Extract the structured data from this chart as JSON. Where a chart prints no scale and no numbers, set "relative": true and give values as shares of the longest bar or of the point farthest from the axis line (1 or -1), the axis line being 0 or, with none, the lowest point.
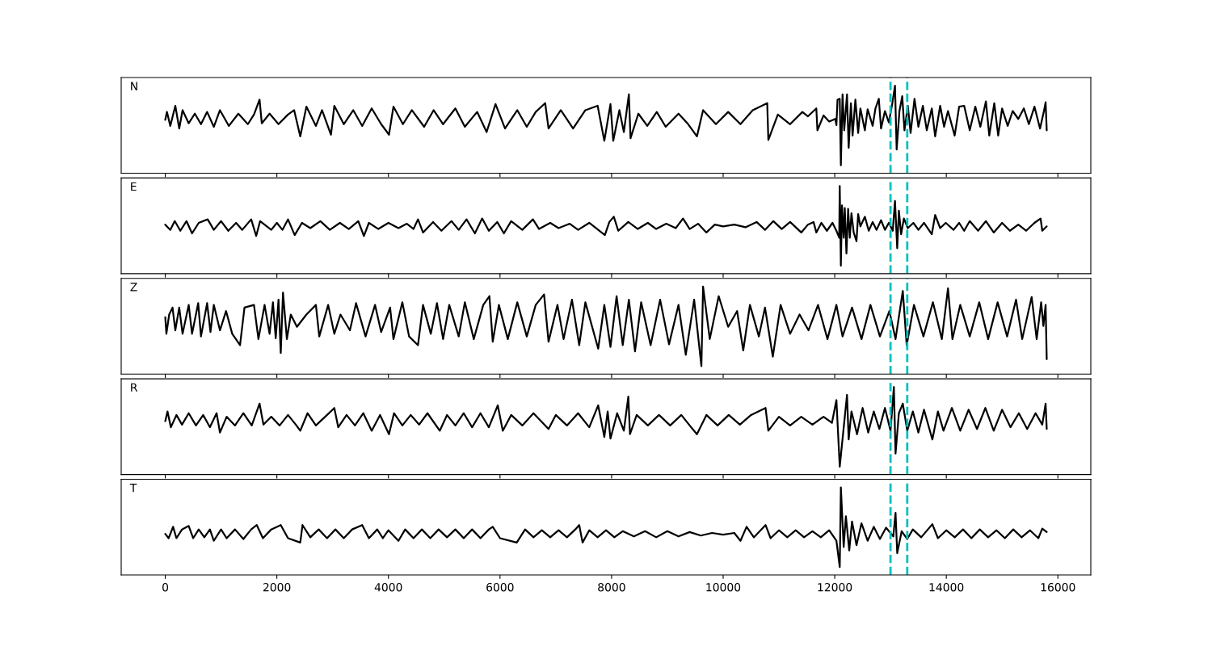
{
  "chart_data": [
    {
      "type": "line",
      "title": "N",
      "relative": true,
      "color": "#000000",
      "xlim": [
        -790,
        16590
      ],
      "xticks": [
        0,
        2000,
        4000,
        6000,
        8000,
        10000,
        12000,
        14000,
        16000
      ],
      "tick_labels": false,
      "ref_lines": [
        {
          "axis": "x",
          "value": 13000,
          "color": "#00bfbf",
          "line_style": "dashed"
        },
        {
          "axis": "x",
          "value": 13300,
          "color": "#00bfbf",
          "line_style": "dashed"
        }
      ],
      "x": [
        0,
        30,
        90,
        180,
        250,
        310,
        420,
        530,
        640,
        750,
        870,
        980,
        1140,
        1310,
        1480,
        1590,
        1690,
        1730,
        1870,
        2030,
        2200,
        2310,
        2420,
        2530,
        2700,
        2810,
        2970,
        3030,
        3200,
        3370,
        3530,
        3700,
        3870,
        4010,
        4090,
        4260,
        4420,
        4640,
        4810,
        4980,
        5200,
        5370,
        5590,
        5760,
        5920,
        6090,
        6310,
        6480,
        6640,
        6810,
        6870,
        7090,
        7310,
        7530,
        7750,
        7870,
        7980,
        8030,
        8140,
        8220,
        8310,
        8340,
        8480,
        8640,
        8810,
        8970,
        9200,
        9360,
        9530,
        9640,
        9870,
        10090,
        10310,
        10530,
        10790,
        10810,
        10980,
        11200,
        11420,
        11520,
        11670,
        11690,
        11800,
        11900,
        12010,
        12030,
        12050,
        12090,
        12110,
        12140,
        12170,
        12220,
        12250,
        12290,
        12320,
        12370,
        12420,
        12460,
        12540,
        12590,
        12680,
        12730,
        12790,
        12830,
        12900,
        12970,
        13030,
        13080,
        13110,
        13160,
        13210,
        13250,
        13310,
        13360,
        13430,
        13500,
        13580,
        13650,
        13740,
        13800,
        13890,
        13960,
        14030,
        14150,
        14230,
        14320,
        14420,
        14520,
        14610,
        14710,
        14770,
        14860,
        14930,
        15000,
        15100,
        15190,
        15290,
        15390,
        15480,
        15580,
        15680,
        15750,
        15780,
        15800
      ],
      "values": [
        0.61,
        0.7,
        0.54,
        0.77,
        0.51,
        0.72,
        0.57,
        0.68,
        0.56,
        0.7,
        0.53,
        0.72,
        0.54,
        0.68,
        0.56,
        0.67,
        0.84,
        0.57,
        0.68,
        0.56,
        0.67,
        0.72,
        0.42,
        0.76,
        0.54,
        0.72,
        0.44,
        0.77,
        0.56,
        0.72,
        0.54,
        0.74,
        0.56,
        0.44,
        0.76,
        0.56,
        0.72,
        0.53,
        0.72,
        0.56,
        0.74,
        0.53,
        0.7,
        0.47,
        0.79,
        0.51,
        0.72,
        0.53,
        0.7,
        0.8,
        0.51,
        0.72,
        0.51,
        0.72,
        0.77,
        0.37,
        0.79,
        0.37,
        0.72,
        0.47,
        0.9,
        0.4,
        0.68,
        0.54,
        0.7,
        0.53,
        0.68,
        0.57,
        0.42,
        0.72,
        0.56,
        0.7,
        0.56,
        0.72,
        0.8,
        0.38,
        0.67,
        0.56,
        0.7,
        0.65,
        0.74,
        0.49,
        0.66,
        0.59,
        0.62,
        0.55,
        0.84,
        0.85,
        0.09,
        0.9,
        0.49,
        0.9,
        0.29,
        0.8,
        0.43,
        0.84,
        0.46,
        0.74,
        0.49,
        0.73,
        0.54,
        0.74,
        0.85,
        0.51,
        0.71,
        0.58,
        0.79,
        1.0,
        0.27,
        0.71,
        0.88,
        0.49,
        0.77,
        0.46,
        0.85,
        0.53,
        0.77,
        0.49,
        0.74,
        0.42,
        0.77,
        0.53,
        0.71,
        0.43,
        0.76,
        0.77,
        0.49,
        0.76,
        0.53,
        0.82,
        0.43,
        0.8,
        0.43,
        0.74,
        0.54,
        0.71,
        0.62,
        0.74,
        0.56,
        0.76,
        0.51,
        0.71,
        0.81,
        0.49
      ]
    },
    {
      "type": "line",
      "title": "E",
      "relative": true,
      "color": "#000000",
      "xlim": [
        -790,
        16590
      ],
      "xticks": [
        0,
        2000,
        4000,
        6000,
        8000,
        10000,
        12000,
        14000,
        16000
      ],
      "tick_labels": false,
      "ref_lines": [
        {
          "axis": "x",
          "value": 13000,
          "color": "#00bfbf",
          "line_style": "dashed"
        },
        {
          "axis": "x",
          "value": 13300,
          "color": "#00bfbf",
          "line_style": "dashed"
        }
      ],
      "x": [
        0,
        90,
        170,
        270,
        380,
        480,
        600,
        760,
        870,
        1000,
        1130,
        1270,
        1380,
        1540,
        1630,
        1700,
        1900,
        2000,
        2100,
        2200,
        2320,
        2450,
        2600,
        2780,
        2950,
        3130,
        3290,
        3460,
        3560,
        3650,
        3820,
        4000,
        4180,
        4330,
        4450,
        4530,
        4620,
        4800,
        4950,
        5130,
        5260,
        5400,
        5550,
        5680,
        5800,
        5950,
        6070,
        6200,
        6400,
        6590,
        6700,
        6900,
        7050,
        7250,
        7400,
        7600,
        7760,
        7880,
        7960,
        8040,
        8120,
        8300,
        8470,
        8650,
        8800,
        8980,
        9150,
        9280,
        9400,
        9550,
        9700,
        9850,
        10000,
        10200,
        10400,
        10600,
        10750,
        10900,
        11050,
        11200,
        11400,
        11520,
        11620,
        11670,
        11760,
        11860,
        11960,
        12030,
        12080,
        12090,
        12110,
        12130,
        12160,
        12180,
        12210,
        12240,
        12270,
        12300,
        12340,
        12390,
        12420,
        12460,
        12540,
        12610,
        12680,
        12750,
        12830,
        12900,
        12970,
        13040,
        13080,
        13120,
        13150,
        13190,
        13240,
        13310,
        13410,
        13500,
        13600,
        13740,
        13800,
        13890,
        13990,
        14130,
        14230,
        14320,
        14420,
        14570,
        14710,
        14850,
        15000,
        15140,
        15290,
        15430,
        15580,
        15690,
        15720,
        15800
      ],
      "values": [
        0.56,
        0.5,
        0.6,
        0.49,
        0.6,
        0.46,
        0.58,
        0.62,
        0.5,
        0.6,
        0.49,
        0.58,
        0.5,
        0.62,
        0.43,
        0.6,
        0.5,
        0.58,
        0.5,
        0.62,
        0.44,
        0.58,
        0.52,
        0.6,
        0.5,
        0.58,
        0.51,
        0.6,
        0.43,
        0.58,
        0.51,
        0.58,
        0.52,
        0.57,
        0.51,
        0.62,
        0.47,
        0.59,
        0.49,
        0.6,
        0.5,
        0.62,
        0.46,
        0.63,
        0.49,
        0.59,
        0.46,
        0.6,
        0.5,
        0.62,
        0.51,
        0.58,
        0.52,
        0.57,
        0.5,
        0.58,
        0.5,
        0.44,
        0.59,
        0.65,
        0.49,
        0.59,
        0.51,
        0.58,
        0.51,
        0.57,
        0.52,
        0.63,
        0.51,
        0.57,
        0.47,
        0.56,
        0.54,
        0.56,
        0.53,
        0.59,
        0.5,
        0.6,
        0.51,
        0.59,
        0.47,
        0.56,
        0.59,
        0.47,
        0.58,
        0.49,
        0.58,
        0.49,
        0.41,
        1.0,
        0.09,
        0.78,
        0.41,
        0.75,
        0.23,
        0.74,
        0.41,
        0.69,
        0.47,
        0.37,
        0.68,
        0.54,
        0.65,
        0.49,
        0.59,
        0.5,
        0.61,
        0.5,
        0.58,
        0.49,
        0.83,
        0.29,
        0.72,
        0.45,
        0.63,
        0.52,
        0.58,
        0.5,
        0.58,
        0.45,
        0.67,
        0.52,
        0.58,
        0.5,
        0.58,
        0.49,
        0.6,
        0.49,
        0.6,
        0.47,
        0.58,
        0.49,
        0.56,
        0.49,
        0.58,
        0.63,
        0.49,
        0.54
      ]
    },
    {
      "type": "line",
      "title": "Z",
      "relative": true,
      "color": "#000000",
      "xlim": [
        -790,
        16590
      ],
      "xticks": [
        0,
        2000,
        4000,
        6000,
        8000,
        10000,
        12000,
        14000,
        16000
      ],
      "tick_labels": false,
      "ref_lines": [
        {
          "axis": "x",
          "value": 13000,
          "color": "#00bfbf",
          "line_style": "dashed"
        },
        {
          "axis": "x",
          "value": 13300,
          "color": "#00bfbf",
          "line_style": "dashed"
        }
      ],
      "x": [
        0,
        20,
        70,
        130,
        180,
        250,
        310,
        420,
        480,
        590,
        640,
        750,
        810,
        870,
        980,
        1090,
        1200,
        1340,
        1420,
        1590,
        1670,
        1780,
        1870,
        1930,
        1980,
        2030,
        2070,
        2110,
        2180,
        2250,
        2360,
        2530,
        2700,
        2760,
        2920,
        3030,
        3140,
        3310,
        3420,
        3590,
        3760,
        3870,
        4030,
        4090,
        4250,
        4370,
        4530,
        4620,
        4760,
        4870,
        4980,
        5090,
        5260,
        5370,
        5530,
        5700,
        5810,
        5870,
        5980,
        6140,
        6310,
        6480,
        6640,
        6790,
        6870,
        7030,
        7140,
        7290,
        7420,
        7530,
        7760,
        7870,
        7980,
        8090,
        8200,
        8310,
        8420,
        8530,
        8700,
        8870,
        9030,
        9200,
        9330,
        9480,
        9610,
        9640,
        9760,
        9920,
        10090,
        10250,
        10360,
        10480,
        10640,
        10750,
        10890,
        11030,
        11200,
        11370,
        11530,
        11700,
        11870,
        12030,
        12140,
        12310,
        12480,
        12640,
        12810,
        12980,
        13090,
        13220,
        13290,
        13420,
        13590,
        13760,
        13920,
        14030,
        14110,
        14250,
        14420,
        14590,
        14750,
        14920,
        15090,
        15250,
        15360,
        15530,
        15620,
        15700,
        15740,
        15780,
        15800
      ],
      "values": [
        0.65,
        0.46,
        0.68,
        0.76,
        0.5,
        0.76,
        0.46,
        0.79,
        0.46,
        0.81,
        0.43,
        0.81,
        0.48,
        0.79,
        0.5,
        0.72,
        0.46,
        0.33,
        0.76,
        0.79,
        0.4,
        0.79,
        0.46,
        0.82,
        0.41,
        0.85,
        0.24,
        0.93,
        0.4,
        0.68,
        0.54,
        0.68,
        0.79,
        0.43,
        0.79,
        0.46,
        0.68,
        0.5,
        0.81,
        0.43,
        0.79,
        0.48,
        0.76,
        0.4,
        0.82,
        0.43,
        0.33,
        0.79,
        0.46,
        0.81,
        0.4,
        0.79,
        0.43,
        0.82,
        0.4,
        0.79,
        0.89,
        0.37,
        0.79,
        0.4,
        0.82,
        0.43,
        0.79,
        0.91,
        0.37,
        0.79,
        0.4,
        0.85,
        0.33,
        0.82,
        0.29,
        0.79,
        0.31,
        0.89,
        0.33,
        0.85,
        0.26,
        0.82,
        0.33,
        0.85,
        0.34,
        0.79,
        0.22,
        0.85,
        0.09,
        1.0,
        0.4,
        0.89,
        0.54,
        0.72,
        0.27,
        0.79,
        0.43,
        0.76,
        0.2,
        0.79,
        0.46,
        0.68,
        0.5,
        0.79,
        0.4,
        0.79,
        0.43,
        0.76,
        0.4,
        0.79,
        0.43,
        0.72,
        0.4,
        0.95,
        0.33,
        0.79,
        0.43,
        0.82,
        0.4,
        0.98,
        0.4,
        0.79,
        0.43,
        0.82,
        0.4,
        0.82,
        0.43,
        0.85,
        0.4,
        0.88,
        0.4,
        0.82,
        0.55,
        0.79,
        0.17
      ]
    },
    {
      "type": "line",
      "title": "R",
      "relative": true,
      "color": "#000000",
      "xlim": [
        -790,
        16590
      ],
      "xticks": [
        0,
        2000,
        4000,
        6000,
        8000,
        10000,
        12000,
        14000,
        16000
      ],
      "tick_labels": false,
      "ref_lines": [
        {
          "axis": "x",
          "value": 13000,
          "color": "#00bfbf",
          "line_style": "dashed"
        },
        {
          "axis": "x",
          "value": 13300,
          "color": "#00bfbf",
          "line_style": "dashed"
        }
      ],
      "x": [
        0,
        40,
        100,
        200,
        300,
        420,
        550,
        680,
        800,
        920,
        980,
        1100,
        1250,
        1400,
        1550,
        1690,
        1760,
        1900,
        2050,
        2200,
        2340,
        2420,
        2550,
        2700,
        2900,
        3030,
        3100,
        3250,
        3400,
        3550,
        3700,
        3850,
        4010,
        4100,
        4250,
        4400,
        4550,
        4700,
        4920,
        5050,
        5200,
        5350,
        5500,
        5650,
        5800,
        5960,
        6050,
        6200,
        6400,
        6600,
        6870,
        7000,
        7200,
        7400,
        7600,
        7760,
        7870,
        7930,
        7980,
        8100,
        8220,
        8300,
        8330,
        8450,
        8650,
        8850,
        9050,
        9250,
        9400,
        9530,
        9700,
        9900,
        10100,
        10300,
        10500,
        10760,
        10810,
        11000,
        11200,
        11400,
        11600,
        11800,
        11950,
        12030,
        12090,
        12220,
        12250,
        12300,
        12400,
        12500,
        12600,
        12700,
        12800,
        12900,
        13000,
        13060,
        13090,
        13150,
        13220,
        13300,
        13400,
        13500,
        13600,
        13750,
        13850,
        13950,
        14100,
        14250,
        14400,
        14550,
        14700,
        14850,
        15000,
        15150,
        15300,
        15450,
        15600,
        15720,
        15780,
        15800
      ],
      "values": [
        0.61,
        0.72,
        0.54,
        0.68,
        0.57,
        0.7,
        0.56,
        0.68,
        0.54,
        0.7,
        0.48,
        0.66,
        0.56,
        0.7,
        0.56,
        0.81,
        0.57,
        0.66,
        0.56,
        0.68,
        0.57,
        0.5,
        0.7,
        0.56,
        0.68,
        0.76,
        0.54,
        0.68,
        0.56,
        0.7,
        0.5,
        0.68,
        0.46,
        0.7,
        0.56,
        0.68,
        0.57,
        0.7,
        0.5,
        0.68,
        0.56,
        0.7,
        0.54,
        0.7,
        0.54,
        0.79,
        0.5,
        0.68,
        0.56,
        0.7,
        0.52,
        0.68,
        0.56,
        0.7,
        0.54,
        0.79,
        0.43,
        0.72,
        0.41,
        0.7,
        0.5,
        0.89,
        0.46,
        0.68,
        0.56,
        0.68,
        0.56,
        0.68,
        0.56,
        0.46,
        0.68,
        0.56,
        0.68,
        0.57,
        0.68,
        0.76,
        0.5,
        0.66,
        0.56,
        0.66,
        0.57,
        0.66,
        0.59,
        0.85,
        0.09,
        0.91,
        0.4,
        0.72,
        0.46,
        0.76,
        0.48,
        0.72,
        0.52,
        0.76,
        0.5,
        1.0,
        0.24,
        0.7,
        0.81,
        0.5,
        0.72,
        0.48,
        0.74,
        0.4,
        0.72,
        0.5,
        0.76,
        0.5,
        0.74,
        0.52,
        0.76,
        0.5,
        0.74,
        0.54,
        0.7,
        0.52,
        0.7,
        0.57,
        0.81,
        0.52
      ]
    },
    {
      "type": "line",
      "title": "T",
      "relative": true,
      "color": "#000000",
      "xlim": [
        -790,
        16590
      ],
      "xticks": [
        0,
        2000,
        4000,
        6000,
        8000,
        10000,
        12000,
        14000,
        16000
      ],
      "tick_labels": "x",
      "ref_lines": [
        {
          "axis": "x",
          "value": 13000,
          "color": "#00bfbf",
          "line_style": "dashed"
        },
        {
          "axis": "x",
          "value": 13300,
          "color": "#00bfbf",
          "line_style": "dashed"
        }
      ],
      "x": [
        0,
        60,
        140,
        200,
        300,
        420,
        500,
        600,
        700,
        800,
        870,
        1000,
        1100,
        1250,
        1400,
        1540,
        1640,
        1750,
        1900,
        2070,
        2200,
        2420,
        2460,
        2600,
        2750,
        2900,
        3050,
        3200,
        3350,
        3530,
        3650,
        3800,
        3900,
        4000,
        4180,
        4300,
        4450,
        4600,
        4750,
        4900,
        5050,
        5200,
        5350,
        5500,
        5650,
        5800,
        5870,
        6000,
        6300,
        6450,
        6600,
        6750,
        6900,
        7050,
        7200,
        7350,
        7420,
        7480,
        7600,
        7750,
        7900,
        8050,
        8200,
        8400,
        8600,
        8800,
        9000,
        9200,
        9400,
        9600,
        9800,
        10000,
        10200,
        10310,
        10420,
        10550,
        10760,
        10850,
        11000,
        11150,
        11300,
        11450,
        11600,
        11750,
        11900,
        12030,
        12090,
        12110,
        12160,
        12200,
        12260,
        12310,
        12390,
        12480,
        12590,
        12700,
        12810,
        12920,
        13050,
        13090,
        13120,
        13200,
        13300,
        13400,
        13550,
        13750,
        13850,
        14000,
        14150,
        14300,
        14450,
        14600,
        14750,
        14900,
        15050,
        15200,
        15350,
        15500,
        15650,
        15720,
        15800
      ],
      "values": [
        0.47,
        0.42,
        0.55,
        0.42,
        0.52,
        0.56,
        0.42,
        0.52,
        0.43,
        0.52,
        0.39,
        0.52,
        0.42,
        0.52,
        0.41,
        0.52,
        0.57,
        0.42,
        0.52,
        0.57,
        0.42,
        0.37,
        0.57,
        0.43,
        0.52,
        0.42,
        0.52,
        0.42,
        0.52,
        0.57,
        0.42,
        0.52,
        0.42,
        0.51,
        0.39,
        0.52,
        0.42,
        0.52,
        0.42,
        0.52,
        0.43,
        0.52,
        0.42,
        0.52,
        0.42,
        0.52,
        0.55,
        0.42,
        0.37,
        0.52,
        0.43,
        0.51,
        0.43,
        0.51,
        0.43,
        0.52,
        0.57,
        0.37,
        0.51,
        0.43,
        0.51,
        0.43,
        0.5,
        0.44,
        0.5,
        0.43,
        0.5,
        0.44,
        0.49,
        0.45,
        0.48,
        0.46,
        0.48,
        0.39,
        0.55,
        0.43,
        0.57,
        0.42,
        0.51,
        0.43,
        0.51,
        0.43,
        0.5,
        0.43,
        0.51,
        0.39,
        0.09,
        1.0,
        0.32,
        0.67,
        0.28,
        0.61,
        0.34,
        0.59,
        0.39,
        0.55,
        0.41,
        0.54,
        0.44,
        0.71,
        0.25,
        0.5,
        0.41,
        0.52,
        0.43,
        0.58,
        0.42,
        0.51,
        0.43,
        0.52,
        0.42,
        0.52,
        0.43,
        0.51,
        0.42,
        0.52,
        0.43,
        0.51,
        0.42,
        0.53,
        0.49
      ]
    }
  ]
}
